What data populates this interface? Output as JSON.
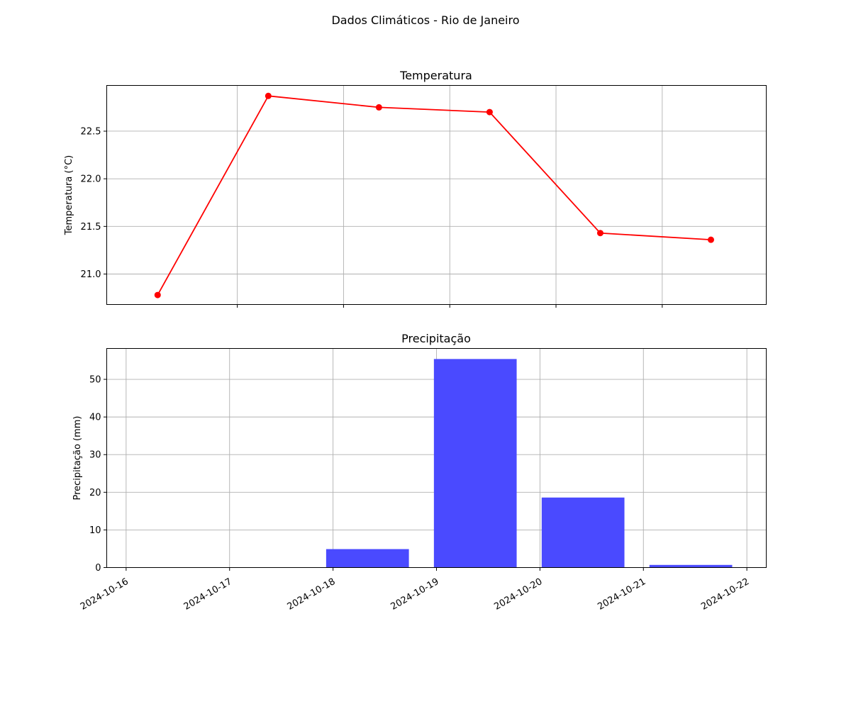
{
  "figure": {
    "suptitle": "Dados Climáticos - Rio de Janeiro"
  },
  "chart_data": [
    {
      "type": "line",
      "title": "Temperatura",
      "xlabel": "",
      "ylabel": "Temperatura (°C)",
      "x": [
        "2024-10-16 06:00",
        "2024-10-17 07:00",
        "2024-10-18 08:00",
        "2024-10-19 09:00",
        "2024-10-20 10:00",
        "2024-10-21 11:00"
      ],
      "values": [
        20.78,
        22.87,
        22.75,
        22.7,
        21.43,
        21.36
      ],
      "xlim": [
        "2024-10-15 18:30",
        "2024-10-21 23:30"
      ],
      "ylim": [
        20.68,
        22.98
      ],
      "yticks": [
        21.0,
        21.5,
        22.0,
        22.5
      ],
      "ytick_labels": [
        "21.0",
        "21.5",
        "22.0",
        "22.5"
      ],
      "xticks": [
        "2024-10-17",
        "2024-10-18",
        "2024-10-19",
        "2024-10-20",
        "2024-10-21"
      ],
      "shared_x_labels_hidden": true,
      "grid": true,
      "color": "#ff0000",
      "marker": "circle"
    },
    {
      "type": "bar",
      "title": "Precipitação",
      "xlabel": "",
      "ylabel": "Precipitação (mm)",
      "x": [
        "2024-10-16 06:00",
        "2024-10-17 07:00",
        "2024-10-18 08:00",
        "2024-10-19 09:00",
        "2024-10-20 10:00",
        "2024-10-21 11:00"
      ],
      "values": [
        0,
        0,
        4.9,
        55.4,
        18.6,
        0.7
      ],
      "bar_width_days": 0.8,
      "xlim": [
        "2024-10-15 19:30",
        "2024-10-22 04:30"
      ],
      "ylim": [
        0,
        58.2
      ],
      "yticks": [
        0,
        10,
        20,
        30,
        40,
        50
      ],
      "ytick_labels": [
        "0",
        "10",
        "20",
        "30",
        "40",
        "50"
      ],
      "xticks": [
        "2024-10-16",
        "2024-10-17",
        "2024-10-18",
        "2024-10-19",
        "2024-10-20",
        "2024-10-21",
        "2024-10-22"
      ],
      "xtick_labels": [
        "2024-10-16",
        "2024-10-17",
        "2024-10-18",
        "2024-10-19",
        "2024-10-20",
        "2024-10-21",
        "2024-10-22"
      ],
      "grid": true,
      "color": "#4a4aff"
    }
  ]
}
